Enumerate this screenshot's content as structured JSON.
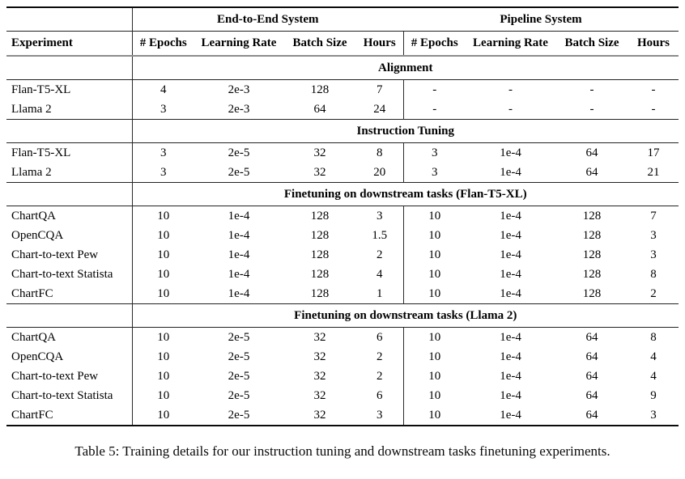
{
  "table": {
    "group_headers": [
      {
        "label": "End-to-End System"
      },
      {
        "label": "Pipeline System"
      }
    ],
    "columns": [
      "Experiment",
      "# Epochs",
      "Learning Rate",
      "Batch Size",
      "Hours",
      "# Epochs",
      "Learning Rate",
      "Batch Size",
      "Hours"
    ],
    "sections": [
      {
        "title": "Alignment",
        "rows": [
          {
            "experiment": "Flan-T5-XL",
            "e2e": [
              "4",
              "2e-3",
              "128",
              "7"
            ],
            "pipeline": [
              "-",
              "-",
              "-",
              "-"
            ]
          },
          {
            "experiment": "Llama 2",
            "e2e": [
              "3",
              "2e-3",
              "64",
              "24"
            ],
            "pipeline": [
              "-",
              "-",
              "-",
              "-"
            ]
          }
        ]
      },
      {
        "title": "Instruction Tuning",
        "rows": [
          {
            "experiment": "Flan-T5-XL",
            "e2e": [
              "3",
              "2e-5",
              "32",
              "8"
            ],
            "pipeline": [
              "3",
              "1e-4",
              "64",
              "17"
            ]
          },
          {
            "experiment": "Llama 2",
            "e2e": [
              "3",
              "2e-5",
              "32",
              "20"
            ],
            "pipeline": [
              "3",
              "1e-4",
              "64",
              "21"
            ]
          }
        ]
      },
      {
        "title": "Finetuning on downstream tasks (Flan-T5-XL)",
        "rows": [
          {
            "experiment": "ChartQA",
            "e2e": [
              "10",
              "1e-4",
              "128",
              "3"
            ],
            "pipeline": [
              "10",
              "1e-4",
              "128",
              "7"
            ]
          },
          {
            "experiment": "OpenCQA",
            "e2e": [
              "10",
              "1e-4",
              "128",
              "1.5"
            ],
            "pipeline": [
              "10",
              "1e-4",
              "128",
              "3"
            ]
          },
          {
            "experiment": "Chart-to-text Pew",
            "e2e": [
              "10",
              "1e-4",
              "128",
              "2"
            ],
            "pipeline": [
              "10",
              "1e-4",
              "128",
              "3"
            ]
          },
          {
            "experiment": "Chart-to-text Statista",
            "e2e": [
              "10",
              "1e-4",
              "128",
              "4"
            ],
            "pipeline": [
              "10",
              "1e-4",
              "128",
              "8"
            ]
          },
          {
            "experiment": "ChartFC",
            "e2e": [
              "10",
              "1e-4",
              "128",
              "1"
            ],
            "pipeline": [
              "10",
              "1e-4",
              "128",
              "2"
            ]
          }
        ]
      },
      {
        "title": "Finetuning on downstream tasks (Llama 2)",
        "rows": [
          {
            "experiment": "ChartQA",
            "e2e": [
              "10",
              "2e-5",
              "32",
              "6"
            ],
            "pipeline": [
              "10",
              "1e-4",
              "64",
              "8"
            ]
          },
          {
            "experiment": "OpenCQA",
            "e2e": [
              "10",
              "2e-5",
              "32",
              "2"
            ],
            "pipeline": [
              "10",
              "1e-4",
              "64",
              "4"
            ]
          },
          {
            "experiment": "Chart-to-text Pew",
            "e2e": [
              "10",
              "2e-5",
              "32",
              "2"
            ],
            "pipeline": [
              "10",
              "1e-4",
              "64",
              "4"
            ]
          },
          {
            "experiment": "Chart-to-text Statista",
            "e2e": [
              "10",
              "2e-5",
              "32",
              "6"
            ],
            "pipeline": [
              "10",
              "1e-4",
              "64",
              "9"
            ]
          },
          {
            "experiment": "ChartFC",
            "e2e": [
              "10",
              "2e-5",
              "32",
              "3"
            ],
            "pipeline": [
              "10",
              "1e-4",
              "64",
              "3"
            ]
          }
        ]
      }
    ]
  },
  "caption": "Table 5: Training details for our instruction tuning and downstream tasks finetuning experiments."
}
